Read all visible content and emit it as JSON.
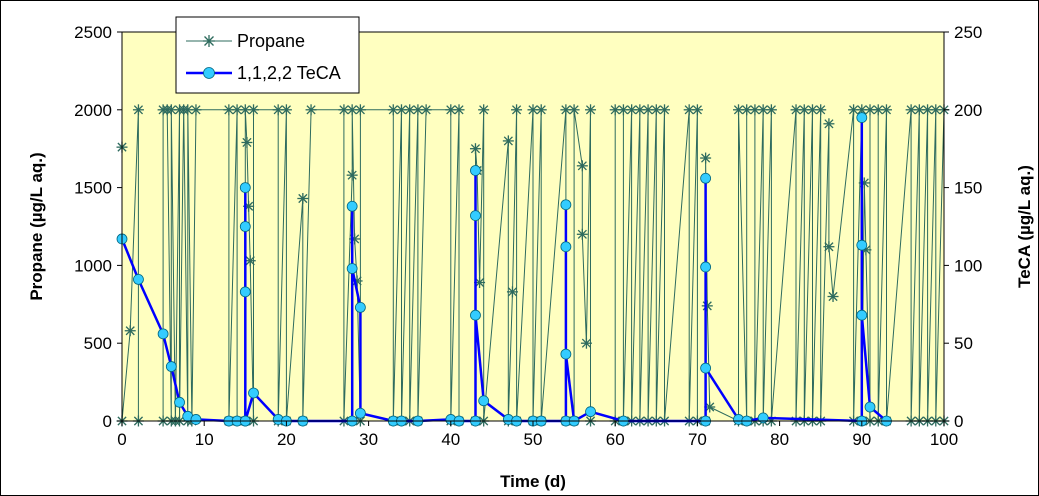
{
  "chart_data": {
    "type": "line",
    "xlabel": "Time (d)",
    "ylabel": "Propane (µg/L aq.)",
    "y2label": "TeCA (µg/L aq.)",
    "xlim": [
      0,
      100
    ],
    "ylim": [
      0,
      2500
    ],
    "y2lim": [
      0,
      250
    ],
    "x_ticks": [
      "0",
      "10",
      "20",
      "30",
      "40",
      "50",
      "60",
      "70",
      "80",
      "90",
      "100"
    ],
    "y_ticks": [
      "0",
      "500",
      "1000",
      "1500",
      "2000",
      "2500"
    ],
    "y2_ticks": [
      "0",
      "50",
      "100",
      "150",
      "200",
      "250"
    ],
    "grid": false,
    "plot_background": "#FFFFC0",
    "legend_position": "top-left",
    "series": [
      {
        "name": "Propane",
        "axis": "left",
        "color": "#2E6B5E",
        "marker": "asterisk",
        "x": [
          0,
          0,
          1,
          2,
          2,
          5,
          5,
          5.5,
          6,
          6,
          6.5,
          7,
          7,
          7.5,
          8,
          8,
          8.5,
          9,
          13,
          13,
          14,
          14,
          15,
          15,
          15.2,
          15.4,
          15.6,
          16,
          16,
          19,
          19,
          20,
          20,
          22,
          22,
          23,
          27,
          27,
          28,
          28,
          28.3,
          28.6,
          29,
          29,
          33,
          33,
          34,
          34,
          35,
          35,
          36,
          36,
          37,
          40,
          40,
          41,
          41,
          43,
          43,
          43.2,
          43.5,
          44,
          44,
          47,
          47,
          47.5,
          48,
          48,
          50,
          50,
          51,
          51,
          54,
          54,
          55,
          55,
          56,
          56,
          56.5,
          57,
          57,
          60,
          60,
          61,
          61,
          62,
          62,
          63,
          63,
          64,
          64,
          65,
          65,
          66,
          66,
          69,
          69,
          70,
          70,
          71,
          71,
          71.2,
          71.5,
          75,
          75,
          76,
          76,
          77,
          77,
          78,
          78,
          79,
          79,
          82,
          82,
          83,
          83,
          84,
          84,
          85,
          85,
          86,
          86,
          86.5,
          89,
          89,
          90,
          90,
          90.3,
          90.5,
          91,
          91,
          92,
          92,
          93,
          93,
          96,
          96,
          97,
          97,
          98,
          98,
          99,
          99,
          100,
          100
        ],
        "values": [
          1760,
          0,
          580,
          2000,
          0,
          0,
          2000,
          2000,
          0,
          2000,
          0,
          2000,
          0,
          2000,
          0,
          2000,
          0,
          2000,
          2000,
          0,
          2000,
          0,
          0,
          2000,
          1790,
          1380,
          1030,
          0,
          2000,
          2000,
          0,
          2000,
          0,
          1430,
          0,
          2000,
          2000,
          0,
          1580,
          2000,
          1170,
          900,
          0,
          2000,
          2000,
          0,
          2000,
          0,
          2000,
          0,
          2000,
          0,
          2000,
          2000,
          0,
          2000,
          0,
          0,
          1750,
          1610,
          890,
          2000,
          0,
          1800,
          0,
          830,
          2000,
          0,
          2000,
          0,
          2000,
          0,
          2000,
          0,
          0,
          2000,
          1640,
          1200,
          500,
          2000,
          0,
          0,
          2000,
          2000,
          0,
          2000,
          0,
          2000,
          0,
          2000,
          0,
          2000,
          0,
          2000,
          0,
          2000,
          0,
          2000,
          0,
          0,
          1690,
          740,
          90,
          0,
          2000,
          0,
          2000,
          2000,
          0,
          2000,
          0,
          2000,
          0,
          2000,
          0,
          2000,
          0,
          2000,
          0,
          2000,
          0,
          1910,
          1120,
          800,
          2000,
          0,
          2000,
          0,
          1530,
          1100,
          0,
          2000,
          2000,
          0,
          2000,
          0,
          2000,
          0,
          2000,
          0,
          2000,
          0,
          2000,
          0,
          2000,
          0
        ]
      },
      {
        "name": "1,1,2,2 TeCA",
        "axis": "right",
        "color": "#0000FF",
        "marker_fill": "#33CCFF",
        "marker": "circle",
        "x": [
          0,
          2,
          5,
          6,
          7,
          8,
          9,
          13,
          14,
          15,
          15,
          15,
          15,
          15,
          16,
          19,
          20,
          22,
          28,
          28,
          28,
          29,
          29,
          33,
          34,
          36,
          40,
          41,
          43,
          43,
          43,
          43,
          44,
          47,
          48,
          50,
          51,
          54,
          54,
          54,
          54,
          55,
          57,
          61,
          71,
          71,
          71,
          71,
          75,
          76,
          78,
          90,
          90,
          90,
          90,
          91,
          93
        ],
        "values": [
          117,
          91,
          56,
          35,
          12,
          3,
          1,
          0,
          0,
          0,
          150,
          125,
          83,
          0,
          18,
          1,
          0,
          0,
          0,
          138,
          98,
          73,
          5,
          0,
          0,
          0,
          1,
          0,
          0,
          161,
          132,
          68,
          13,
          1,
          0,
          0,
          0,
          0,
          139,
          112,
          43,
          0,
          6,
          0,
          0,
          156,
          99,
          34,
          1,
          0,
          2,
          0,
          195,
          113,
          68,
          9,
          0
        ]
      }
    ]
  }
}
